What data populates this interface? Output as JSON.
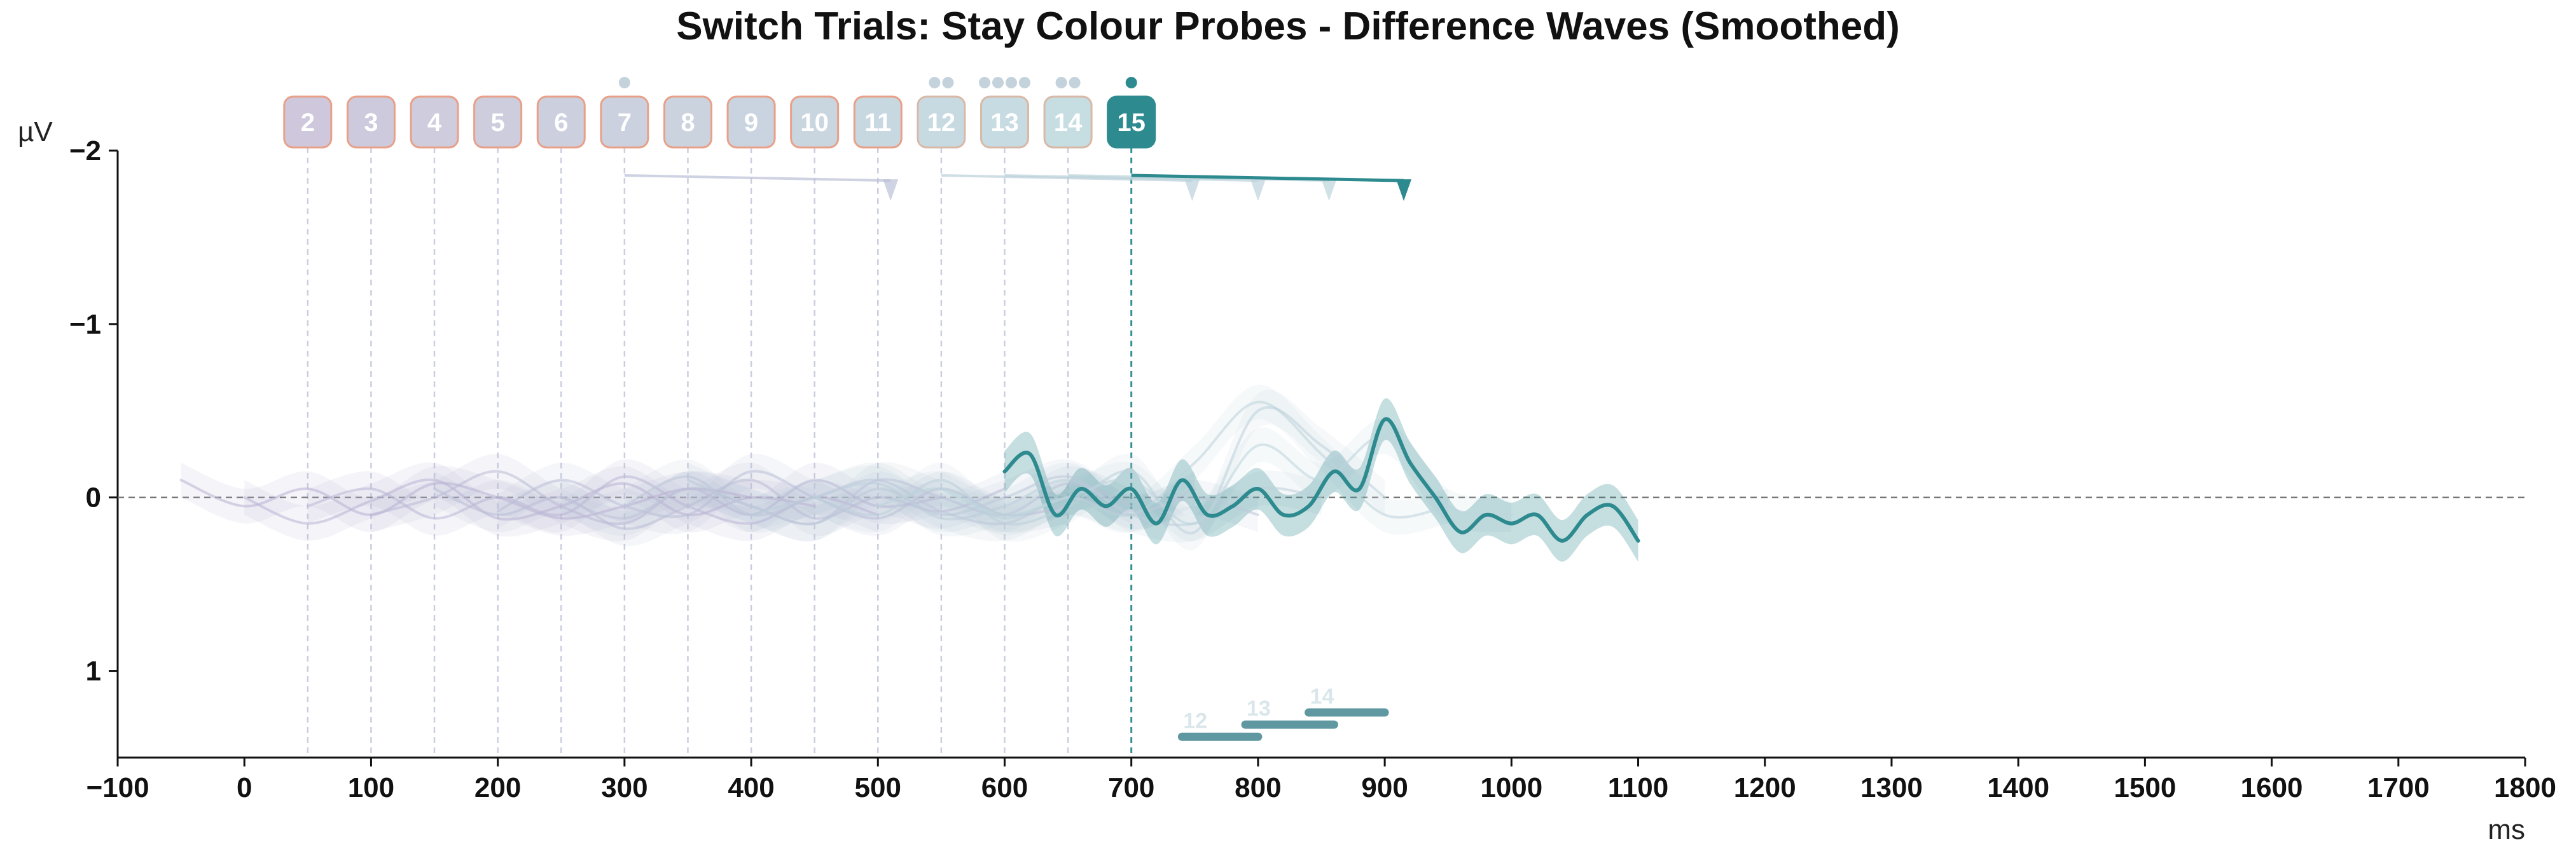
{
  "chart_data": {
    "type": "line",
    "title": "Switch Trials: Stay Colour Probes - Difference Waves (Smoothed)",
    "xlabel": "ms",
    "ylabel": "µV",
    "xlim": [
      -100,
      1800
    ],
    "ylim": [
      -2,
      1.5
    ],
    "y_inverted": true,
    "x_ticks": [
      -100,
      0,
      100,
      200,
      300,
      400,
      500,
      600,
      700,
      800,
      900,
      1000,
      1100,
      1200,
      1300,
      1400,
      1500,
      1600,
      1700,
      1800
    ],
    "x_tick_labels": [
      "−100",
      "0",
      "100",
      "200",
      "300",
      "400",
      "500",
      "600",
      "700",
      "800",
      "900",
      "1000",
      "1100",
      "1200",
      "1300",
      "1400",
      "1500",
      "1600",
      "1700",
      "1800"
    ],
    "y_ticks": [
      -2,
      -1,
      0,
      1
    ],
    "y_tick_labels": [
      "−2",
      "−1",
      "0",
      "1"
    ],
    "zero_line": true,
    "grid": false,
    "highlighted_probe": "15",
    "colors": {
      "highlight": "#2d8a8f",
      "muted_purple": "#b9b0d3",
      "muted_teal": "#bcd6dc",
      "badge_border": "#e8a088",
      "zero_line": "#777777"
    },
    "probes": [
      {
        "label": "2",
        "onset": 50
      },
      {
        "label": "3",
        "onset": 100
      },
      {
        "label": "4",
        "onset": 150
      },
      {
        "label": "5",
        "onset": 200
      },
      {
        "label": "6",
        "onset": 250
      },
      {
        "label": "7",
        "onset": 300
      },
      {
        "label": "8",
        "onset": 350
      },
      {
        "label": "9",
        "onset": 400
      },
      {
        "label": "10",
        "onset": 450
      },
      {
        "label": "11",
        "onset": 500
      },
      {
        "label": "12",
        "onset": 550
      },
      {
        "label": "13",
        "onset": 600
      },
      {
        "label": "14",
        "onset": 650
      },
      {
        "label": "15",
        "onset": 700
      }
    ],
    "series": [
      {
        "probe": "2",
        "x": [
          -50,
          0,
          50,
          100,
          150,
          200,
          250,
          300,
          350,
          400
        ],
        "y": [
          -0.1,
          0.05,
          -0.05,
          0.1,
          -0.08,
          0.0,
          0.12,
          0.05,
          -0.05,
          0.0
        ]
      },
      {
        "probe": "3",
        "x": [
          0,
          50,
          100,
          150,
          200,
          250,
          300,
          350,
          400,
          450
        ],
        "y": [
          0.0,
          0.15,
          0.02,
          -0.1,
          0.12,
          0.05,
          -0.08,
          0.1,
          0.0,
          0.05
        ]
      },
      {
        "probe": "4",
        "x": [
          50,
          100,
          150,
          200,
          250,
          300,
          350,
          400,
          450,
          500
        ],
        "y": [
          0.05,
          -0.05,
          0.12,
          0.0,
          0.1,
          -0.12,
          0.05,
          0.15,
          0.0,
          0.1
        ]
      },
      {
        "probe": "5",
        "x": [
          100,
          150,
          200,
          250,
          300,
          350,
          400,
          450,
          500,
          550
        ],
        "y": [
          0.1,
          0.0,
          -0.15,
          0.05,
          0.15,
          -0.05,
          0.1,
          -0.1,
          0.05,
          0.0
        ]
      },
      {
        "probe": "6",
        "x": [
          150,
          200,
          250,
          300,
          350,
          400,
          450,
          500,
          550,
          600
        ],
        "y": [
          -0.05,
          0.1,
          0.0,
          0.18,
          0.05,
          -0.1,
          0.12,
          0.0,
          0.08,
          -0.05
        ]
      },
      {
        "probe": "7",
        "x": [
          200,
          250,
          300,
          350,
          400,
          450,
          500,
          550,
          600,
          650
        ],
        "y": [
          0.08,
          -0.1,
          0.05,
          0.1,
          -0.15,
          0.0,
          0.12,
          -0.05,
          0.1,
          0.05
        ]
      },
      {
        "probe": "8",
        "x": [
          250,
          300,
          350,
          400,
          450,
          500,
          550,
          600,
          650,
          700
        ],
        "y": [
          0.0,
          0.12,
          -0.05,
          0.05,
          0.15,
          -0.1,
          0.0,
          0.1,
          -0.08,
          0.05
        ]
      },
      {
        "probe": "9",
        "x": [
          300,
          350,
          400,
          450,
          500,
          550,
          600,
          650,
          700,
          750
        ],
        "y": [
          0.05,
          -0.12,
          0.1,
          0.0,
          -0.1,
          0.08,
          0.15,
          0.0,
          0.1,
          -0.05
        ]
      },
      {
        "probe": "10",
        "x": [
          350,
          400,
          450,
          500,
          550,
          600,
          650,
          700,
          750,
          800
        ],
        "y": [
          -0.1,
          0.05,
          0.15,
          -0.05,
          0.1,
          0.0,
          -0.12,
          0.08,
          0.0,
          0.1
        ]
      },
      {
        "probe": "11",
        "x": [
          400,
          450,
          500,
          550,
          600,
          650,
          700,
          750,
          800,
          850
        ],
        "y": [
          0.1,
          0.0,
          -0.08,
          0.12,
          0.05,
          -0.1,
          0.1,
          0.15,
          -0.05,
          0.0
        ]
      },
      {
        "probe": "12",
        "x": [
          450,
          500,
          550,
          600,
          650,
          700,
          750,
          800,
          850,
          900
        ],
        "y": [
          0.0,
          0.1,
          -0.1,
          0.15,
          0.05,
          -0.15,
          0.2,
          -0.5,
          -0.3,
          0.0
        ]
      },
      {
        "probe": "13",
        "x": [
          500,
          550,
          600,
          650,
          700,
          750,
          800,
          850,
          900,
          950
        ],
        "y": [
          0.05,
          -0.05,
          0.12,
          0.0,
          0.1,
          -0.2,
          -0.55,
          -0.25,
          0.1,
          0.05
        ]
      },
      {
        "probe": "14",
        "x": [
          550,
          600,
          650,
          700,
          750,
          800,
          850,
          900,
          950,
          1000
        ],
        "y": [
          -0.05,
          0.1,
          0.0,
          -0.1,
          0.15,
          -0.3,
          -0.1,
          -0.35,
          0.05,
          0.1
        ]
      },
      {
        "probe": "15",
        "x": [
          600,
          620,
          640,
          660,
          680,
          700,
          720,
          740,
          760,
          780,
          800,
          820,
          840,
          860,
          880,
          900,
          920,
          940,
          960,
          980,
          1000,
          1020,
          1040,
          1060,
          1080,
          1100
        ],
        "y": [
          -0.15,
          -0.25,
          0.1,
          -0.05,
          0.05,
          -0.05,
          0.15,
          -0.1,
          0.1,
          0.05,
          -0.05,
          0.1,
          0.05,
          -0.15,
          -0.05,
          -0.45,
          -0.2,
          0.0,
          0.2,
          0.1,
          0.15,
          0.1,
          0.25,
          0.1,
          0.05,
          0.25
        ]
      }
    ],
    "significance_bars": [
      {
        "label": "12",
        "x_start": 740,
        "x_end": 800,
        "y": 1.38
      },
      {
        "label": "13",
        "x_start": 790,
        "x_end": 860,
        "y": 1.31
      },
      {
        "label": "14",
        "x_start": 840,
        "x_end": 900,
        "y": 1.24
      }
    ],
    "markers": [
      {
        "probe": "7",
        "x": 510
      },
      {
        "probe": "12",
        "x": 748
      },
      {
        "probe": "13",
        "x": 800
      },
      {
        "probe": "14",
        "x": 856
      },
      {
        "probe": "15",
        "x": 915
      }
    ],
    "dot_counts": {
      "7": 1,
      "12": 2,
      "13": 4,
      "14": 2,
      "15": 1
    }
  }
}
